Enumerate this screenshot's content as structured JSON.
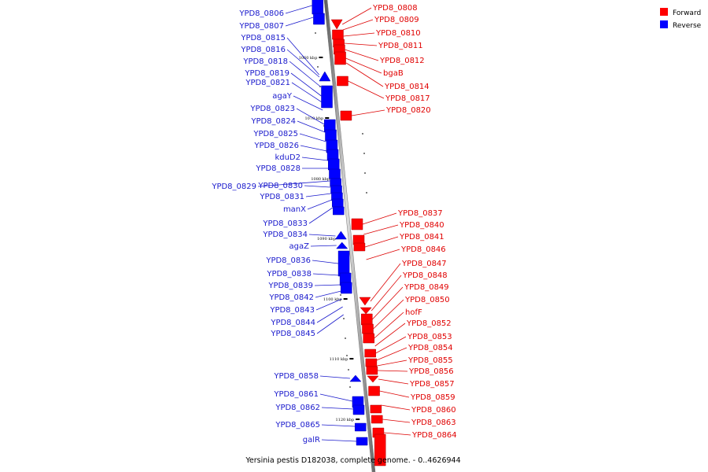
{
  "caption": "Yersinia pestis D182038, complete genome. - 0..4626944",
  "legend": [
    {
      "label": "Forward",
      "color": "#ff0000"
    },
    {
      "label": "Reverse",
      "color": "#0000ff"
    }
  ],
  "strand_colors": {
    "forward": "#ff0000",
    "reverse": "#0000ff"
  },
  "ticks": [
    "1060 kbp",
    "1070 kbp",
    "1080 kbp",
    "1090 kbp",
    "1100 kbp",
    "1110 kbp",
    "1120 kbp"
  ],
  "forward_genes": [
    "YPD8_0808",
    "YPD8_0809",
    "YPD8_0810",
    "YPD8_0811",
    "YPD8_0812",
    "bgaB",
    "YPD8_0814",
    "YPD8_0817",
    "YPD8_0820",
    "YPD8_0837",
    "YPD8_0840",
    "YPD8_0841",
    "YPD8_0846",
    "YPD8_0847",
    "YPD8_0848",
    "YPD8_0849",
    "YPD8_0850",
    "hofF",
    "YPD8_0852",
    "YPD8_0853",
    "YPD8_0854",
    "YPD8_0855",
    "YPD8_0856",
    "YPD8_0857",
    "YPD8_0859",
    "YPD8_0860",
    "YPD8_0863",
    "YPD8_0864"
  ],
  "reverse_genes": [
    "YPD8_0806",
    "YPD8_0807",
    "YPD8_0815",
    "YPD8_0816",
    "YPD8_0818",
    "YPD8_0819",
    "YPD8_0821",
    "agaY",
    "YPD8_0823",
    "YPD8_0824",
    "YPD8_0825",
    "YPD8_0826",
    "kduD2",
    "YPD8_0828",
    "YPD8_0829",
    "YPD8_0830",
    "YPD8_0831",
    "manX",
    "YPD8_0833",
    "YPD8_0834",
    "agaZ",
    "YPD8_0836",
    "YPD8_0838",
    "YPD8_0839",
    "YPD8_0842",
    "YPD8_0843",
    "YPD8_0844",
    "YPD8_0845",
    "YPD8_0858",
    "YPD8_0861",
    "YPD8_0862",
    "YPD8_0865",
    "galR"
  ]
}
